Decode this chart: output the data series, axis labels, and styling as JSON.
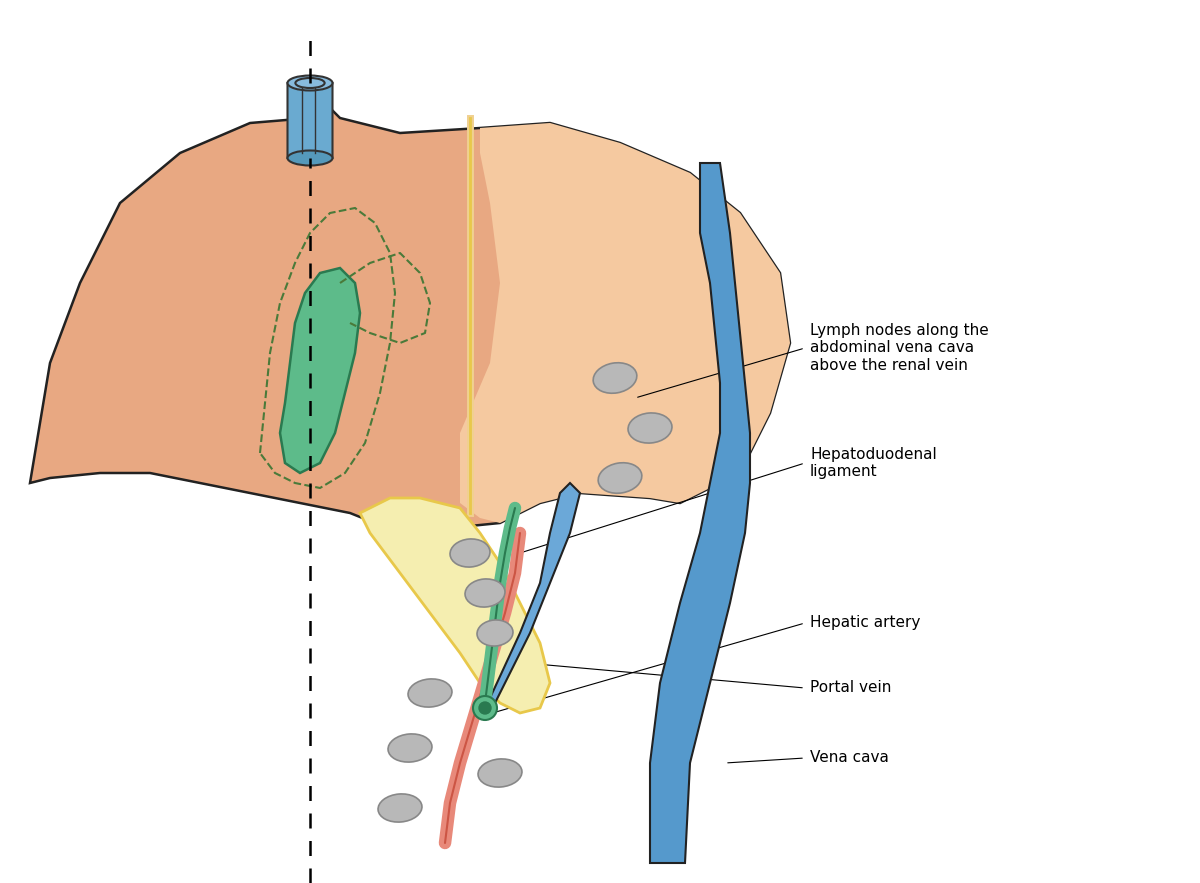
{
  "background": "#ffffff",
  "liver_color": "#E8A882",
  "liver_edge": "#222222",
  "liver_highlight": "#F5C9A0",
  "ligament_color": "#F5EEB0",
  "ligament_edge": "#E8C84A",
  "gallbladder_color": "#4CAF7A",
  "gallbladder_dashed_color": "#7ABF6A",
  "bile_duct_color": "#5DBB8A",
  "hepatic_artery_color": "#E8897A",
  "portal_vein_color": "#5599CC",
  "vena_cava_color": "#5599CC",
  "lymph_node_color": "#AAAAAA",
  "lymph_node_edge": "#888888",
  "title": "Lymph nodes along the abdominal vena cava above the renal vein",
  "labels": {
    "lymph_nodes": "Lymph nodes along the\nabdominal vena cava\nabove the renal vein",
    "hepatoduodenal": "Hepatoduodenal\nligament",
    "hepatic_artery": "Hepatic artery",
    "portal_vein": "Portal vein",
    "vena_cava": "Vena cava"
  }
}
